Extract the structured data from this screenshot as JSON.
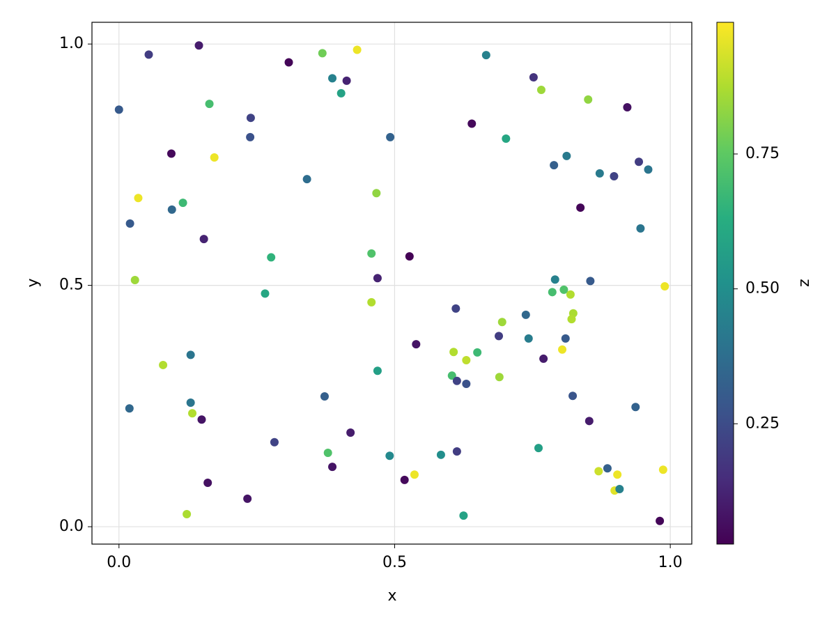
{
  "chart_data": {
    "type": "scatter",
    "xlabel": "x",
    "ylabel": "y",
    "colorbar_label": "z",
    "colormap": "viridis",
    "grid": true,
    "xlim": [
      -0.049,
      1.039
    ],
    "ylim": [
      -0.036,
      1.045
    ],
    "zlim": [
      0.027,
      0.994
    ],
    "xticks": [
      {
        "value": 0,
        "label": "0.0"
      },
      0.5,
      {
        "value": 1,
        "label": "1.0"
      }
    ],
    "yticks": [
      {
        "value": 0,
        "label": "0.0"
      },
      0.5,
      {
        "value": 1,
        "label": "1.0"
      }
    ],
    "zticks": [
      0.25,
      {
        "value": 0.5,
        "label": "0.50"
      },
      0.75
    ],
    "x": [
      0.0,
      0.054,
      0.145,
      0.164,
      0.095,
      0.173,
      0.035,
      0.096,
      0.116,
      0.02,
      0.154,
      0.029,
      0.308,
      0.369,
      0.432,
      0.387,
      0.413,
      0.403,
      0.239,
      0.238,
      0.492,
      0.341,
      0.467,
      0.276,
      0.458,
      0.527,
      0.469,
      0.265,
      0.458,
      0.666,
      0.752,
      0.766,
      0.851,
      0.922,
      0.64,
      0.702,
      0.812,
      0.789,
      0.872,
      0.898,
      0.943,
      0.96,
      0.837,
      0.946,
      0.791,
      0.855,
      0.807,
      0.786,
      0.819,
      0.99,
      0.611,
      0.738,
      0.824,
      0.821,
      0.695,
      0.689,
      0.743,
      0.81,
      0.539,
      0.804,
      0.607,
      0.65,
      0.77,
      0.63,
      0.469,
      0.604,
      0.69,
      0.613,
      0.63,
      0.823,
      0.937,
      0.853,
      0.13,
      0.08,
      0.373,
      0.019,
      0.13,
      0.133,
      0.15,
      0.282,
      0.42,
      0.379,
      0.387,
      0.491,
      0.584,
      0.613,
      0.761,
      0.161,
      0.233,
      0.123,
      0.518,
      0.536,
      0.625,
      0.87,
      0.886,
      0.904,
      0.899,
      0.908,
      0.987,
      0.981
    ],
    "y": [
      0.864,
      0.978,
      0.997,
      0.876,
      0.773,
      0.765,
      0.681,
      0.657,
      0.671,
      0.628,
      0.596,
      0.511,
      0.962,
      0.981,
      0.988,
      0.929,
      0.924,
      0.898,
      0.847,
      0.807,
      0.807,
      0.72,
      0.691,
      0.558,
      0.566,
      0.56,
      0.515,
      0.483,
      0.465,
      0.977,
      0.931,
      0.905,
      0.885,
      0.869,
      0.835,
      0.804,
      0.768,
      0.749,
      0.732,
      0.726,
      0.756,
      0.74,
      0.661,
      0.618,
      0.512,
      0.509,
      0.491,
      0.486,
      0.481,
      0.498,
      0.452,
      0.439,
      0.442,
      0.43,
      0.424,
      0.395,
      0.39,
      0.39,
      0.378,
      0.367,
      0.362,
      0.361,
      0.348,
      0.345,
      0.323,
      0.313,
      0.31,
      0.302,
      0.296,
      0.271,
      0.248,
      0.219,
      0.356,
      0.335,
      0.27,
      0.245,
      0.257,
      0.235,
      0.222,
      0.175,
      0.195,
      0.153,
      0.124,
      0.147,
      0.149,
      0.156,
      0.163,
      0.091,
      0.058,
      0.026,
      0.097,
      0.108,
      0.023,
      0.115,
      0.121,
      0.108,
      0.075,
      0.078,
      0.118,
      0.012
    ],
    "z": [
      0.3,
      0.2,
      0.1,
      0.7,
      0.05,
      0.97,
      0.97,
      0.35,
      0.68,
      0.3,
      0.12,
      0.85,
      0.04,
      0.78,
      0.97,
      0.45,
      0.12,
      0.58,
      0.22,
      0.27,
      0.33,
      0.37,
      0.83,
      0.65,
      0.72,
      0.03,
      0.12,
      0.6,
      0.88,
      0.45,
      0.17,
      0.85,
      0.83,
      0.07,
      0.05,
      0.6,
      0.42,
      0.32,
      0.42,
      0.22,
      0.2,
      0.4,
      0.04,
      0.4,
      0.45,
      0.3,
      0.72,
      0.7,
      0.88,
      0.97,
      0.22,
      0.35,
      0.87,
      0.88,
      0.85,
      0.2,
      0.43,
      0.3,
      0.08,
      0.97,
      0.88,
      0.68,
      0.1,
      0.9,
      0.57,
      0.7,
      0.85,
      0.22,
      0.27,
      0.28,
      0.33,
      0.1,
      0.4,
      0.88,
      0.32,
      0.35,
      0.4,
      0.88,
      0.08,
      0.22,
      0.1,
      0.72,
      0.08,
      0.48,
      0.5,
      0.2,
      0.57,
      0.07,
      0.08,
      0.87,
      0.05,
      0.97,
      0.58,
      0.92,
      0.32,
      0.97,
      0.95,
      0.45,
      0.97,
      0.04
    ]
  }
}
